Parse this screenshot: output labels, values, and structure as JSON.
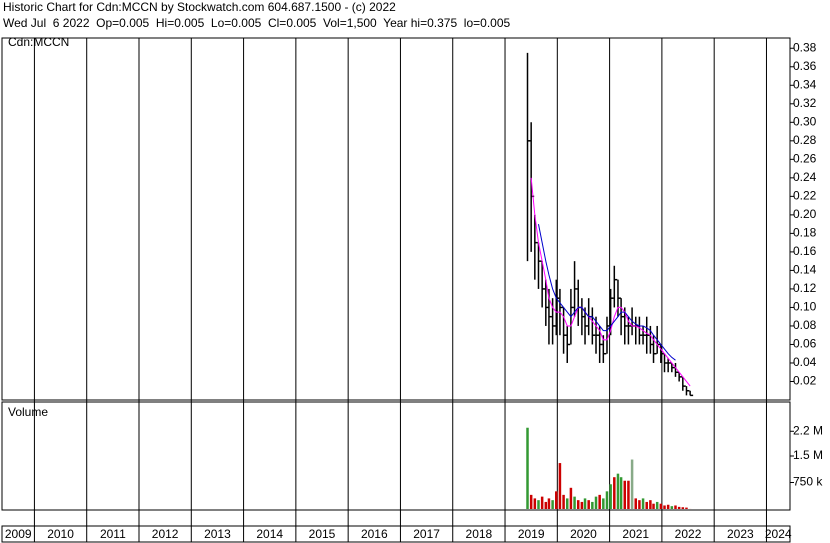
{
  "header": {
    "title": "Historic Chart for Cdn:MCCN by Stockwatch.com 604.687.1500 - (c) 2022",
    "quote": "Wed Jul  6 2022  Op=0.005  Hi=0.005  Lo=0.005  Cl=0.005  Vol=1,500  Year hi=0.375  lo=0.005"
  },
  "chart_data": [
    {
      "type": "hlc",
      "label": "Cdn:MCCN",
      "color": "#000000",
      "xlim": [
        2009.38,
        2024.45
      ],
      "x": [
        2019.43,
        2019.5,
        2019.57,
        2019.64,
        2019.71,
        2019.78,
        2019.84,
        2019.91,
        2019.98,
        2020.05,
        2020.12,
        2020.19,
        2020.26,
        2020.33,
        2020.4,
        2020.47,
        2020.53,
        2020.6,
        2020.67,
        2020.74,
        2020.81,
        2020.88,
        2020.95,
        2021.02,
        2021.09,
        2021.16,
        2021.22,
        2021.29,
        2021.36,
        2021.43,
        2021.5,
        2021.57,
        2021.64,
        2021.71,
        2021.78,
        2021.84,
        2021.91,
        2021.98,
        2022.05,
        2022.12,
        2022.19,
        2022.26,
        2022.33,
        2022.4,
        2022.47,
        2022.54
      ],
      "high": [
        0.375,
        0.3,
        0.2,
        0.17,
        0.15,
        0.13,
        0.12,
        0.11,
        0.13,
        0.12,
        0.1,
        0.08,
        0.12,
        0.15,
        0.13,
        0.11,
        0.1,
        0.11,
        0.1,
        0.09,
        0.08,
        0.07,
        0.09,
        0.12,
        0.145,
        0.13,
        0.11,
        0.1,
        0.09,
        0.1,
        0.09,
        0.09,
        0.08,
        0.09,
        0.08,
        0.07,
        0.08,
        0.06,
        0.05,
        0.045,
        0.04,
        0.04,
        0.03,
        0.025,
        0.015,
        0.01
      ],
      "low": [
        0.15,
        0.16,
        0.13,
        0.12,
        0.1,
        0.08,
        0.06,
        0.06,
        0.07,
        0.07,
        0.05,
        0.04,
        0.06,
        0.09,
        0.08,
        0.07,
        0.06,
        0.07,
        0.06,
        0.05,
        0.04,
        0.04,
        0.05,
        0.07,
        0.1,
        0.09,
        0.07,
        0.06,
        0.06,
        0.07,
        0.06,
        0.06,
        0.06,
        0.05,
        0.05,
        0.04,
        0.05,
        0.04,
        0.03,
        0.03,
        0.03,
        0.025,
        0.02,
        0.01,
        0.005,
        0.005
      ],
      "close": [
        0.28,
        0.22,
        0.17,
        0.15,
        0.12,
        0.1,
        0.09,
        0.08,
        0.11,
        0.1,
        0.07,
        0.06,
        0.1,
        0.12,
        0.1,
        0.09,
        0.08,
        0.09,
        0.07,
        0.07,
        0.06,
        0.05,
        0.08,
        0.11,
        0.13,
        0.11,
        0.09,
        0.08,
        0.08,
        0.08,
        0.08,
        0.07,
        0.07,
        0.07,
        0.06,
        0.05,
        0.06,
        0.05,
        0.04,
        0.04,
        0.035,
        0.03,
        0.025,
        0.015,
        0.01,
        0.005
      ],
      "moving_averages": [
        {
          "color": "#ff00ff",
          "values": [
            null,
            0.24,
            0.2,
            0.17,
            0.15,
            0.13,
            0.11,
            0.1,
            0.095,
            0.095,
            0.09,
            0.08,
            0.08,
            0.09,
            0.1,
            0.1,
            0.095,
            0.09,
            0.085,
            0.08,
            0.075,
            0.065,
            0.065,
            0.075,
            0.09,
            0.1,
            0.1,
            0.095,
            0.085,
            0.08,
            0.08,
            0.078,
            0.075,
            0.072,
            0.07,
            0.065,
            0.06,
            0.055,
            0.05,
            0.045,
            0.04,
            0.035,
            0.03,
            0.025,
            0.02,
            0.015
          ]
        },
        {
          "color": "#0000cc",
          "values": [
            null,
            null,
            null,
            0.19,
            0.17,
            0.15,
            0.135,
            0.12,
            0.11,
            0.105,
            0.1,
            0.095,
            0.09,
            0.095,
            0.1,
            0.1,
            0.095,
            0.09,
            0.09,
            0.085,
            0.08,
            0.075,
            0.075,
            0.08,
            0.085,
            0.09,
            0.095,
            0.095,
            0.09,
            0.085,
            0.082,
            0.08,
            0.08,
            0.078,
            0.075,
            0.07,
            0.065,
            0.06,
            0.055,
            0.05,
            0.046,
            0.043,
            null,
            null,
            null,
            null
          ]
        }
      ],
      "ylim": [
        0,
        0.39
      ],
      "yticks": [
        0.02,
        0.04,
        0.06,
        0.08,
        {
          "value": 0.1,
          "label": "0.10"
        },
        0.12,
        0.14,
        0.16,
        0.18,
        {
          "value": 0.2,
          "label": "0.20"
        },
        0.22,
        0.24,
        0.26,
        0.28,
        {
          "value": 0.3,
          "label": "0.30"
        },
        0.32,
        0.34,
        0.36,
        0.38
      ]
    },
    {
      "type": "bar",
      "label": "Volume",
      "xlim": [
        2009.38,
        2024.45
      ],
      "xticks": [
        {
          "value": 2009,
          "label": "2009"
        },
        {
          "value": 2010,
          "label": "2010"
        },
        {
          "value": 2011,
          "label": "2011"
        },
        {
          "value": 2012,
          "label": "2012"
        },
        {
          "value": 2013,
          "label": "2013"
        },
        {
          "value": 2014,
          "label": "2014"
        },
        {
          "value": 2015,
          "label": "2015"
        },
        {
          "value": 2016,
          "label": "2016"
        },
        {
          "value": 2017,
          "label": "2017"
        },
        {
          "value": 2018,
          "label": "2018"
        },
        {
          "value": 2019,
          "label": "2019"
        },
        {
          "value": 2020,
          "label": "2020"
        },
        {
          "value": 2021,
          "label": "2021"
        },
        {
          "value": 2022,
          "label": "2022"
        },
        {
          "value": 2023,
          "label": "2023"
        },
        {
          "value": 2024,
          "label": "2024"
        }
      ],
      "x": [
        2019.43,
        2019.5,
        2019.57,
        2019.64,
        2019.71,
        2019.78,
        2019.84,
        2019.91,
        2019.98,
        2020.05,
        2020.12,
        2020.19,
        2020.26,
        2020.33,
        2020.4,
        2020.47,
        2020.53,
        2020.6,
        2020.67,
        2020.74,
        2020.81,
        2020.88,
        2020.95,
        2021.02,
        2021.09,
        2021.16,
        2021.22,
        2021.29,
        2021.36,
        2021.43,
        2021.5,
        2021.57,
        2021.64,
        2021.71,
        2021.78,
        2021.84,
        2021.91,
        2021.98,
        2022.05,
        2022.12,
        2022.19,
        2022.26,
        2022.33,
        2022.4,
        2022.47,
        2022.54
      ],
      "values": [
        2300000,
        400000,
        300000,
        250000,
        350000,
        200000,
        300000,
        250000,
        500000,
        1300000,
        400000,
        300000,
        600000,
        350000,
        250000,
        200000,
        300000,
        250000,
        200000,
        350000,
        400000,
        300000,
        500000,
        700000,
        900000,
        1000000,
        900000,
        800000,
        800000,
        1400000,
        300000,
        250000,
        300000,
        200000,
        250000,
        150000,
        200000,
        150000,
        100000,
        120000,
        80000,
        100000,
        60000,
        50000,
        40000,
        1500
      ],
      "colors": [
        "#339933",
        "#cc0000",
        "#cc0000",
        "#339933",
        "#cc0000",
        "#cc0000",
        "#cc0000",
        "#339933",
        "#cc0000",
        "#cc0000",
        "#cc0000",
        "#339933",
        "#cc0000",
        "#339933",
        "#cc0000",
        "#cc0000",
        "#339933",
        "#cc0000",
        "#339933",
        "#339933",
        "#cc0000",
        "#339933",
        "#339933",
        "#339933",
        "#cc0000",
        "#339933",
        "#339933",
        "#cc0000",
        "#cc0000",
        "#88aa88",
        "#cc0000",
        "#cc0000",
        "#339933",
        "#cc0000",
        "#cc0000",
        "#cc0000",
        "#339933",
        "#cc0000",
        "#cc0000",
        "#cc0000",
        "#339933",
        "#cc0000",
        "#cc0000",
        "#cc0000",
        "#cc0000",
        "#cc0000"
      ],
      "ylim": [
        0,
        3000000
      ],
      "yticks": [
        {
          "value": 750000,
          "label": "750 k"
        },
        {
          "value": 1500000,
          "label": "1.5 M"
        },
        {
          "value": 2200000,
          "label": "2.2 M"
        }
      ]
    }
  ]
}
